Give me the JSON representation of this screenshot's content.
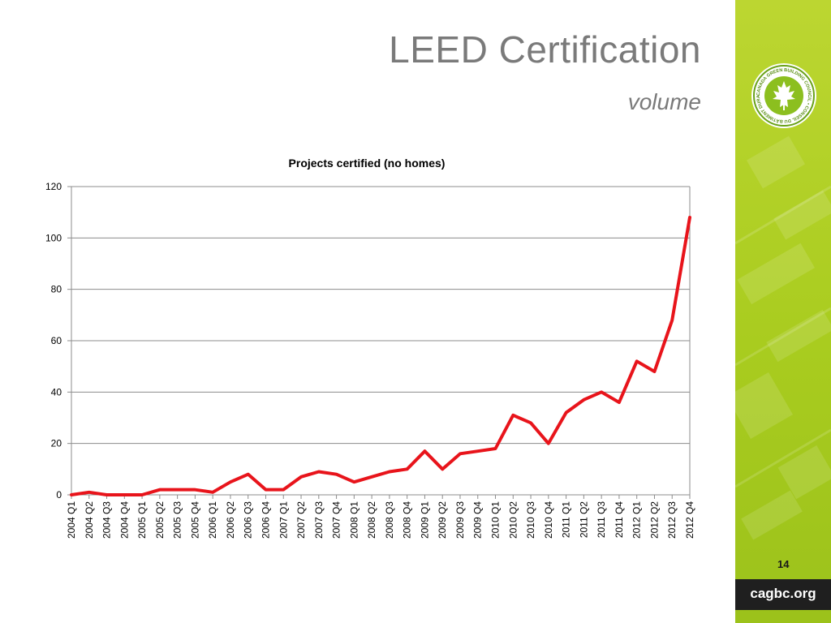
{
  "slide": {
    "title": "LEED Certification",
    "subtitle": "volume",
    "page_number": "14",
    "footer_url": "cagbc.org"
  },
  "colors": {
    "sidebar_green": "#a9cc1f",
    "series_line": "#e8141b",
    "footer_band": "#1f1f1f",
    "title_gray": "#7a7a7a"
  },
  "logo": {
    "icon": "maple-leaf-seal-icon",
    "ring_text": "CANADA GREEN BUILDING COUNCIL • CONSEIL DU BÂTIMENT DURABLE DU CANADA •"
  },
  "chart_data": {
    "type": "line",
    "title": "Projects certified (no homes)",
    "xlabel": "",
    "ylabel": "",
    "ylim": [
      0,
      120
    ],
    "yticks": [
      0,
      20,
      40,
      60,
      80,
      100,
      120
    ],
    "grid": true,
    "legend": "none",
    "categories": [
      "2004 Q1",
      "2004 Q2",
      "2004 Q3",
      "2004 Q4",
      "2005 Q1",
      "2005 Q2",
      "2005 Q3",
      "2005 Q4",
      "2006 Q1",
      "2006 Q2",
      "2006 Q3",
      "2006 Q4",
      "2007 Q1",
      "2007 Q2",
      "2007 Q3",
      "2007 Q4",
      "2008 Q1",
      "2008 Q2",
      "2008 Q3",
      "2008 Q4",
      "2009 Q1",
      "2009 Q2",
      "2009 Q3",
      "2009 Q4",
      "2010 Q1",
      "2010 Q2",
      "2010 Q3",
      "2010 Q4",
      "2011 Q1",
      "2011 Q2",
      "2011 Q3",
      "2011 Q4",
      "2012 Q1",
      "2012 Q2",
      "2012 Q3",
      "2012 Q4"
    ],
    "values": [
      0,
      1,
      0,
      0,
      0,
      2,
      2,
      2,
      1,
      5,
      8,
      2,
      2,
      7,
      9,
      8,
      5,
      7,
      9,
      10,
      17,
      10,
      16,
      17,
      18,
      31,
      28,
      20,
      32,
      37,
      40,
      36,
      52,
      48,
      68,
      108
    ]
  }
}
